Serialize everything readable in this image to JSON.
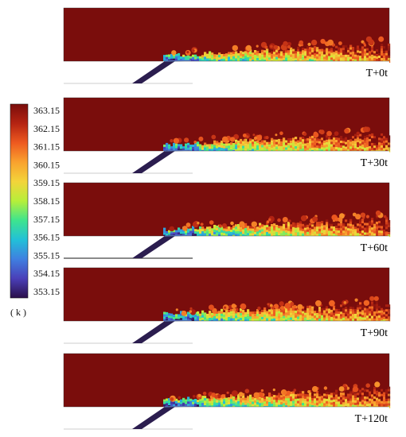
{
  "colorbar": {
    "unit_label": "( k )",
    "tick_labels": [
      "363.15",
      "362.15",
      "361.15",
      "360.15",
      "359.15",
      "358.15",
      "357.15",
      "356.15",
      "355.15",
      "354.15",
      "353.15"
    ],
    "min": 353.15,
    "max": 363.15,
    "colormap": [
      "#2b0f4a",
      "#4a3fb8",
      "#3f7fe0",
      "#22c0d8",
      "#3ee48e",
      "#b6ef3a",
      "#f3d43a",
      "#f9a22e",
      "#ee5a20",
      "#b52412",
      "#7a0d0c"
    ]
  },
  "panels": [
    {
      "label": "T+0t"
    },
    {
      "label": "T+30t"
    },
    {
      "label": "T+60t"
    },
    {
      "label": "T+90t"
    },
    {
      "label": "T+120t"
    }
  ],
  "colors": {
    "hot_fluid": "#7a0d0c",
    "injector": "#2b1d4f"
  }
}
